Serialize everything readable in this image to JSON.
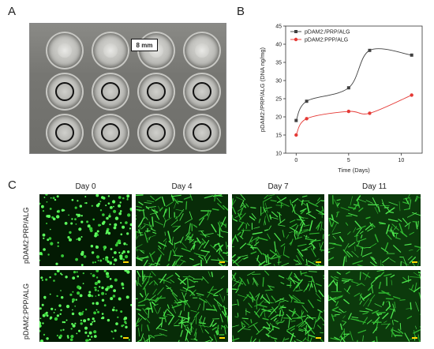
{
  "panels": {
    "a_label": "A",
    "b_label": "B",
    "c_label": "C"
  },
  "photo": {
    "scale_text": "8 mm",
    "rows": [
      {
        "style": "plain",
        "count": 4
      },
      {
        "style": "ring",
        "count": 4
      },
      {
        "style": "ring",
        "count": 4
      }
    ]
  },
  "chart_data": {
    "type": "line",
    "title": "",
    "xlabel": "Time (Days)",
    "ylabel": "pDAM2:/PRP/ALG (DNA ng/mg)",
    "xlim": [
      -1,
      12
    ],
    "ylim": [
      10,
      45
    ],
    "xticks": [
      0,
      5,
      10
    ],
    "yticks": [
      10,
      15,
      20,
      25,
      30,
      35,
      40,
      45
    ],
    "legend_position": "top-left",
    "grid": false,
    "series": [
      {
        "name": "pDAM2:/PRP/ALG",
        "color": "#404040",
        "marker": "square",
        "x": [
          0,
          1,
          5,
          7,
          11
        ],
        "y": [
          19,
          24.3,
          28,
          38.3,
          37
        ]
      },
      {
        "name": "pDAM2:PPP/ALG",
        "color": "#e53935",
        "marker": "circle",
        "x": [
          0,
          1,
          5,
          7,
          11
        ],
        "y": [
          15,
          19.5,
          21.5,
          21,
          26
        ]
      }
    ]
  },
  "microscopy": {
    "days": [
      "Day 0",
      "Day 4",
      "Day 7",
      "Day 11"
    ],
    "rows": [
      "pDAM2:PRP/ALG",
      "pDAM2:PPP/ALG"
    ]
  }
}
